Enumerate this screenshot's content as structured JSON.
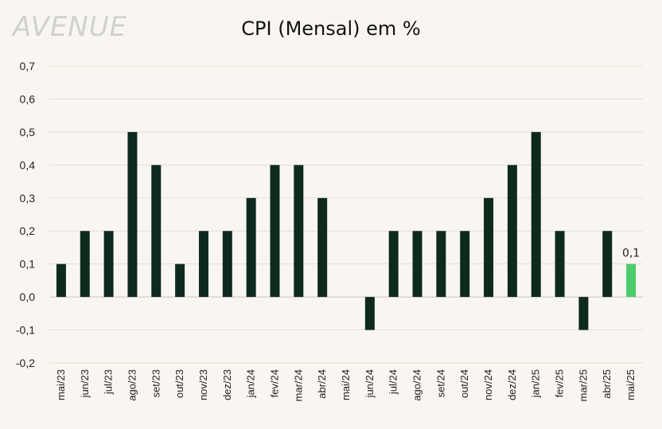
{
  "logo_text": "AVENUE",
  "chart_data": {
    "type": "bar",
    "title": "CPI (Mensal) em %",
    "xlabel": "",
    "ylabel": "",
    "ylim": [
      -0.2,
      0.7
    ],
    "yticks": [
      0.7,
      0.6,
      0.5,
      0.4,
      0.3,
      0.2,
      0.1,
      0.0,
      -0.1,
      -0.2
    ],
    "ytick_labels": [
      "0,7",
      "0,6",
      "0,5",
      "0,4",
      "0,3",
      "0,2",
      "0,1",
      "0,0",
      "-0,1",
      "-0,2"
    ],
    "grid": true,
    "categories": [
      "mai/23",
      "jun/23",
      "jul/23",
      "ago/23",
      "set/23",
      "out/23",
      "nov/23",
      "dez/23",
      "jan/24",
      "fev/24",
      "mar/24",
      "abr/24",
      "mai/24",
      "jun/24",
      "jul/24",
      "ago/24",
      "set/24",
      "out/24",
      "nov/24",
      "dez/24",
      "jan/25",
      "fev/25",
      "mar/25",
      "abr/25",
      "mai/25"
    ],
    "values": [
      0.1,
      0.2,
      0.2,
      0.5,
      0.4,
      0.1,
      0.2,
      0.2,
      0.3,
      0.4,
      0.4,
      0.3,
      0.0,
      -0.1,
      0.2,
      0.2,
      0.2,
      0.2,
      0.3,
      0.4,
      0.5,
      0.2,
      -0.1,
      0.2,
      0.1
    ],
    "bar_color": "#0e2a1e",
    "highlight_color": "#4ccc6c",
    "highlight_index": 24,
    "data_labels": [
      {
        "index": 24,
        "text": "0,1"
      }
    ]
  }
}
